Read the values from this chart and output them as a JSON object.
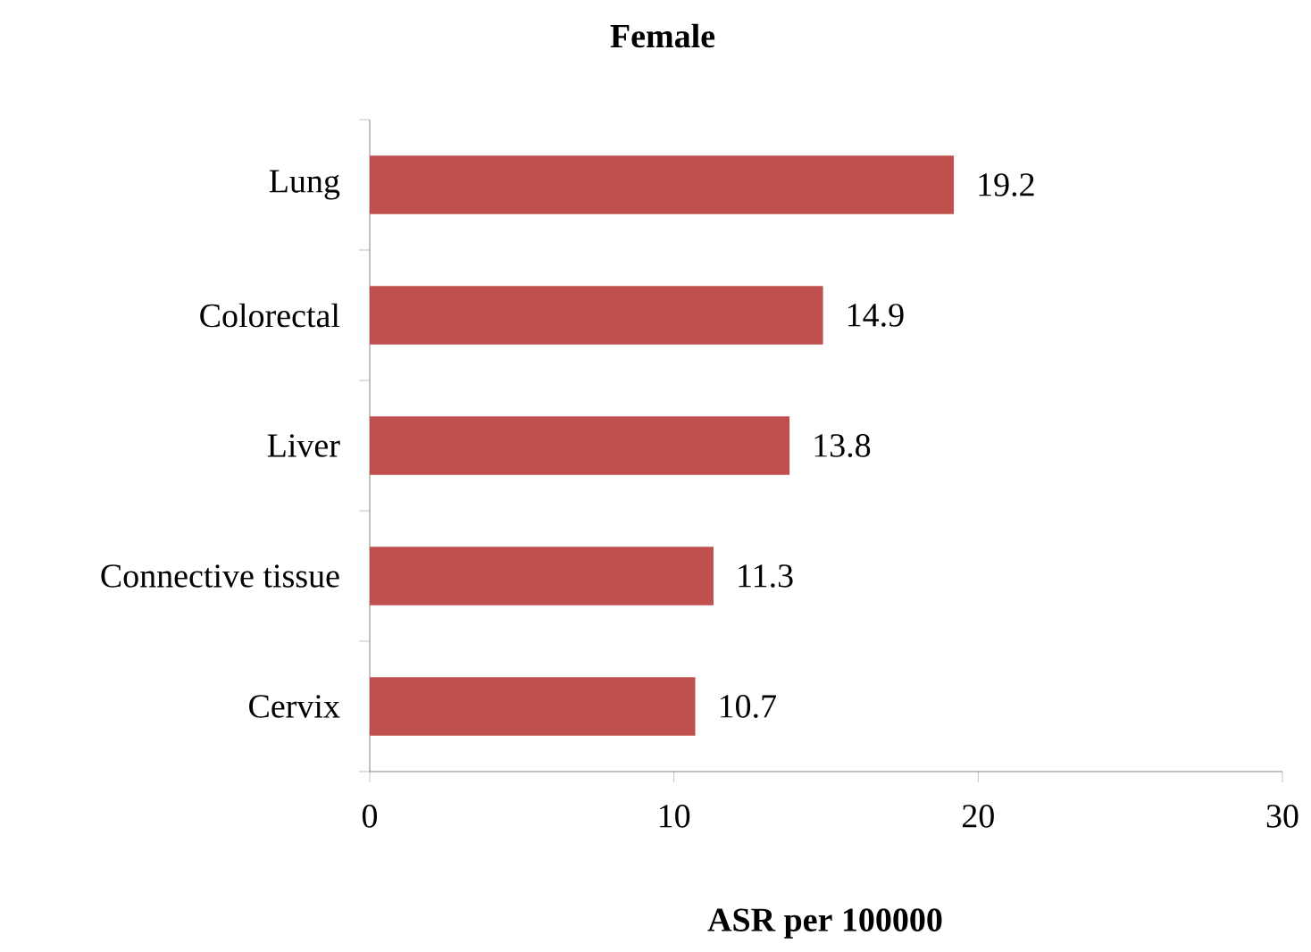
{
  "chart_data": {
    "type": "bar",
    "orientation": "horizontal",
    "title": "Female",
    "xlabel": "ASR per 100000",
    "categories": [
      "Lung",
      "Colorectal",
      "Liver",
      "Connective tissue",
      "Cervix"
    ],
    "values": [
      19.2,
      14.9,
      13.8,
      11.3,
      10.7
    ],
    "color": "#c0504d",
    "xlim": [
      0,
      30
    ],
    "xticks": [
      0,
      10,
      20,
      30
    ],
    "data_labels": true
  }
}
